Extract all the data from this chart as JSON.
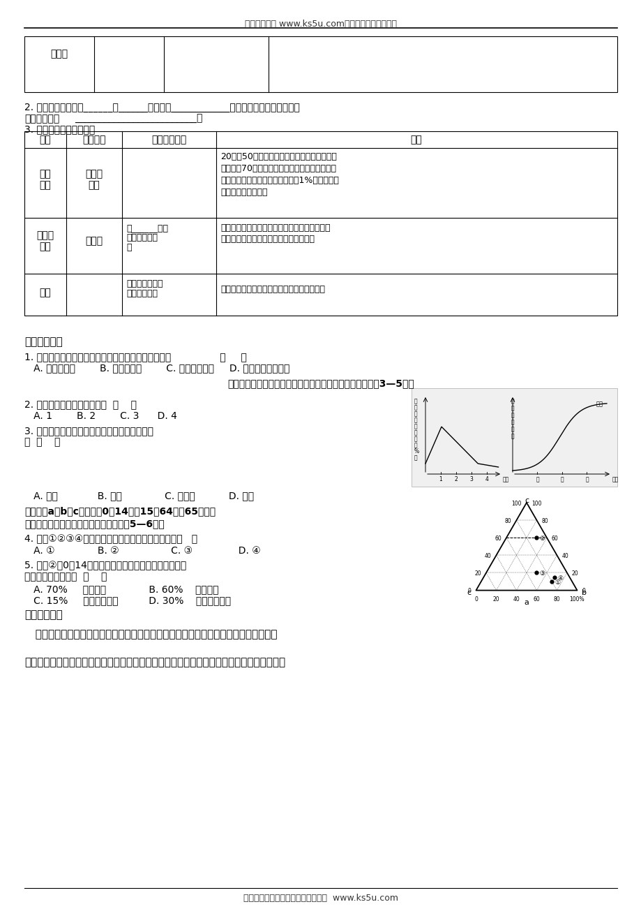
{
  "header_text": "高考资源网（ www.ks5u.com），您身边的高考专家",
  "footer_text": "欢迎广大教师踊跃来稿，稿酬丰厚。  www.ks5u.com",
  "bg_color": "#ffffff",
  "table1_label": "现代型",
  "line2_text": "2. 人口增长模式是由______向______，继而向____________转变。人口增长模式的转变",
  "line2b_bold": "根本原因是：",
  "line2b_line": "_________________________。",
  "line3_text": "3. 人口增长模式地区分布",
  "table2_headers": [
    "地区",
    "代表地区",
    "人口增长模式",
    "备注"
  ],
  "bz1": "20世纪50年代后，发达国家的人口出生率不断",
  "bz2": "降低，到70年代中期，以欧洲和北美为代表的发",
  "bz3": "达地区的人口自然增长率平均不足1%，人口增长",
  "bz4": "模式已经引入现代型",
  "r2_model1": "由______向现",
  "r2_model2": "代型的转变阶",
  "r2_model3": "段",
  "r2_note1": "大多数发展中国家的人口死亡率已经降至与发达",
  "r2_note2": "国家相当的水平，但人口的出生率仍较高",
  "r3_model1": "由传统型向现代",
  "r3_model2": "型的转变阶段",
  "r3_note": "由于发展中国家的人口占世界人口的绝大多数",
  "section_heading": "【当堂检测】",
  "q1_text": "1. 各大洲中，人口自然增长率最高和最低的大洲分别是                （     ）",
  "q1_options": "   A. 亚洲、欧洲        B. 非洲、欧洲        C. 非洲、北美洲     D. 拉丁美洲、大洋洲",
  "chart_header": "读城市化进程和某国人口自然增长率变化曲线两幅图，完成3—5题。",
  "q2_text": "2. 该国人口达到顶峰的时间为  （    ）",
  "q2_options": "   A. 1        B. 2        C. 3      D. 4",
  "q3_text1": "3. 下列各国中，人口发展状况与图示类型一致的",
  "q3_text2": "是  （    ）",
  "q3_options": "   A. 埃及             B. 中国              C. 新加坡           D. 德国",
  "q4_header1": "读下图，a、b、c分别表示0～14岁、15～64岁、65岁以上",
  "q4_header2": "三种年龄人数所占总人口比重。据此回答5—6题。",
  "q4_text": "4. 图中①②③④四个国家中，老龄化问题最严重的是（   ）",
  "q4_options": "   A. ①              B. ②                 C. ③               D. ④",
  "q5_text1": "5. 图中②国0～14岁年龄人数所占总人口比重大小及应采",
  "q5_text2": "取的相应正确措施是  （    ）",
  "q5_opt_a": "   A. 70%     鼓励生育              B. 60%    计划生育",
  "q5_opt_b": "   C. 15%     采取移民政策          D. 30%    鼓励人员出国",
  "example_heading": "【典题解悟】",
  "example_p1": "   三角坐标图是近年高考的热门题型，它通过等边三角形的三条边作为坐标轴，表示三种",
  "example_p2": "不同或相同类的地理数据。判读三角坐标图的一般方法是：一定要始始址。按需要读取某数据"
}
